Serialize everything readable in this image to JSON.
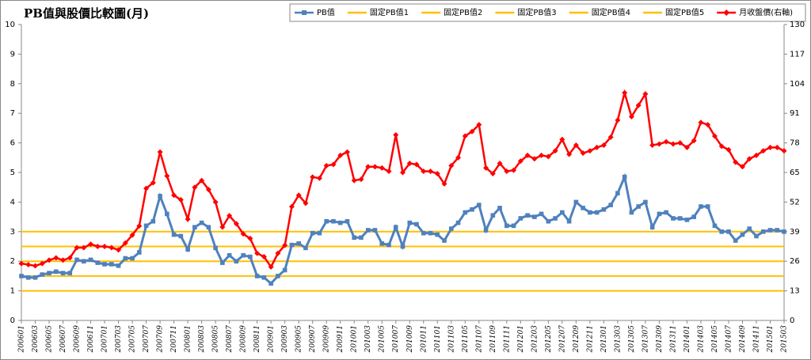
{
  "chart_data": {
    "type": "line",
    "title": "PB值與股價比較圖(月)",
    "categories": [
      "200601",
      null,
      "200603",
      null,
      "200605",
      null,
      "200607",
      null,
      "200609",
      null,
      "200611",
      null,
      "200701",
      null,
      "200703",
      null,
      "200705",
      null,
      "200707",
      null,
      "200709",
      null,
      "200711",
      null,
      "200801",
      null,
      "200803",
      null,
      "200805",
      null,
      "200807",
      null,
      "200809",
      null,
      "200811",
      null,
      "200901",
      null,
      "200903",
      null,
      "200905",
      null,
      "200907",
      null,
      "200909",
      null,
      "200911",
      null,
      "201001",
      null,
      "201003",
      null,
      "201005",
      null,
      "201007",
      null,
      "201009",
      null,
      "201011",
      null,
      "201101",
      null,
      "201103",
      null,
      "201105",
      null,
      "201107",
      null,
      "201109",
      null,
      "201111",
      null,
      "201201",
      null,
      "201203",
      null,
      "201205",
      null,
      "201207",
      null,
      "201209",
      null,
      "201211",
      null,
      "201301",
      null,
      "201303",
      null,
      "201305",
      null,
      "201307",
      null,
      "201309",
      null,
      "201311",
      null,
      "201401",
      null,
      "201403",
      null,
      "201405",
      null,
      "201407",
      null,
      "201409",
      null,
      "201411",
      null,
      "201501",
      null,
      "201503"
    ],
    "series": [
      {
        "name": "PB值",
        "color": "#4f81bd",
        "marker": "square",
        "values": [
          1.5,
          1.45,
          1.45,
          1.55,
          1.6,
          1.65,
          1.6,
          1.6,
          2.05,
          2.0,
          2.05,
          1.95,
          1.9,
          1.9,
          1.85,
          2.1,
          2.1,
          2.3,
          3.2,
          3.35,
          4.2,
          3.6,
          2.9,
          2.85,
          2.4,
          3.15,
          3.3,
          3.15,
          2.45,
          1.95,
          2.2,
          2.0,
          2.2,
          2.15,
          1.5,
          1.45,
          1.25,
          1.5,
          1.7,
          2.55,
          2.6,
          2.45,
          2.95,
          2.95,
          3.35,
          3.35,
          3.3,
          3.35,
          2.8,
          2.8,
          3.05,
          3.05,
          2.6,
          2.55,
          3.15,
          2.5,
          3.3,
          3.25,
          2.95,
          2.95,
          2.9,
          2.7,
          3.1,
          3.3,
          3.65,
          3.75,
          3.9,
          3.05,
          3.55,
          3.8,
          3.2,
          3.2,
          3.45,
          3.55,
          3.5,
          3.6,
          3.35,
          3.45,
          3.65,
          3.35,
          4.0,
          3.8,
          3.65,
          3.65,
          3.75,
          3.9,
          4.3,
          4.85,
          3.65,
          3.85,
          4.0,
          3.15,
          3.6,
          3.65,
          3.45,
          3.45,
          3.4,
          3.5,
          3.85,
          3.85,
          3.2,
          3.0,
          3.0,
          2.7,
          2.9,
          3.1,
          2.85,
          3.0,
          3.05,
          3.05,
          3.0
        ]
      },
      {
        "name": "固定PB值1",
        "color": "#ffc000",
        "value": 1
      },
      {
        "name": "固定PB值2",
        "color": "#ffc000",
        "value": 1.5
      },
      {
        "name": "固定PB值3",
        "color": "#ffc000",
        "value": 2
      },
      {
        "name": "固定PB值4",
        "color": "#ffc000",
        "value": 2.5
      },
      {
        "name": "固定PB值5",
        "color": "#ffc000",
        "value": 3
      },
      {
        "name": "月收盤價(右軸)",
        "color": "#ff0000",
        "marker": "diamond",
        "axis": "y2",
        "values": [
          25,
          24.5,
          24,
          25,
          26.5,
          27.5,
          26.5,
          27.5,
          32,
          32,
          33.5,
          32.5,
          32.5,
          32,
          31,
          34,
          37.5,
          41.5,
          58,
          60.5,
          74,
          63.5,
          55,
          53,
          44.5,
          58.5,
          61.5,
          57.5,
          52,
          41,
          46,
          42.5,
          38,
          36,
          29.5,
          28,
          23.5,
          29.5,
          33,
          50,
          55,
          51.5,
          63,
          62.5,
          68,
          68.5,
          72.5,
          74,
          61.5,
          62,
          67.5,
          67.5,
          67,
          65.5,
          81.5,
          65,
          69,
          68.5,
          65.5,
          65.5,
          64.5,
          60,
          68,
          71.5,
          81,
          83,
          86,
          67,
          64.5,
          69,
          65.5,
          66,
          70,
          72.5,
          71,
          72.5,
          72,
          74.5,
          79.5,
          73,
          77,
          73.5,
          74.5,
          76,
          77,
          80.5,
          88,
          100,
          89.5,
          94.5,
          99.5,
          77,
          77.5,
          78.5,
          77.5,
          78,
          76,
          79,
          87,
          86,
          81,
          76.5,
          75,
          69.5,
          67.5,
          71,
          72.5,
          74.5,
          76,
          76,
          74.5
        ]
      }
    ],
    "ylim": [
      0,
      10
    ],
    "yticks": [
      0,
      1,
      2,
      3,
      4,
      5,
      6,
      7,
      8,
      9,
      10
    ],
    "y2lim": [
      0,
      130
    ],
    "y2ticks": [
      0,
      13,
      26,
      39,
      52,
      65,
      78,
      91,
      104,
      117,
      130
    ],
    "grid": false,
    "legend": "top-right"
  }
}
